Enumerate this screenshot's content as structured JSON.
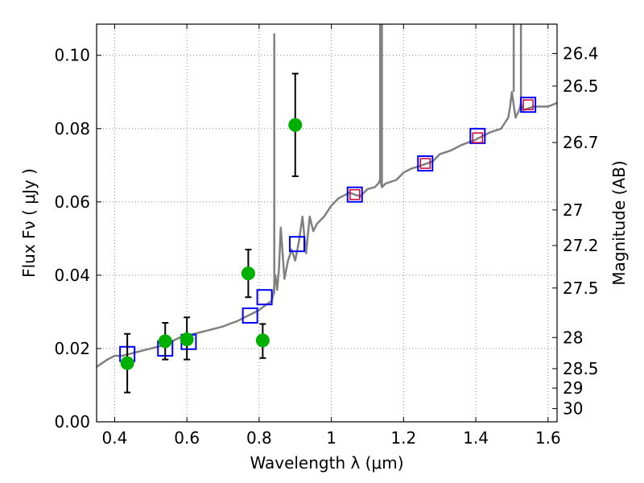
{
  "chart_data": {
    "type": "line",
    "title": "",
    "xlabel": "Wavelength  λ (μm)",
    "ylabel": "Flux  Fν  ( μJy )",
    "y2label": "Magnitude (AB)",
    "xlim": [
      0.35,
      1.625
    ],
    "ylim": [
      0.0,
      0.1085
    ],
    "grid": true,
    "x_ticks": [
      0.4,
      0.6,
      0.8,
      1.0,
      1.2,
      1.4,
      1.6
    ],
    "x_tick_labels": [
      "0.4",
      "0.6",
      "0.8",
      "1",
      "1.2",
      "1.4",
      "1.6"
    ],
    "y_ticks": [
      0.0,
      0.02,
      0.04,
      0.06,
      0.08,
      0.1
    ],
    "y_tick_labels": [
      "0.00",
      "0.02",
      "0.04",
      "0.06",
      "0.08",
      "0.10"
    ],
    "mag_ticks": [
      {
        "label": "26.4",
        "flux": 0.1005
      },
      {
        "label": "26.5",
        "flux": 0.0916
      },
      {
        "label": "26.7",
        "flux": 0.0762
      },
      {
        "label": "27",
        "flux": 0.0578
      },
      {
        "label": "27.2",
        "flux": 0.0481
      },
      {
        "label": "27.5",
        "flux": 0.0365
      },
      {
        "label": "28",
        "flux": 0.023
      },
      {
        "label": "28.5",
        "flux": 0.0145
      },
      {
        "label": "29",
        "flux": 0.0092
      },
      {
        "label": "30",
        "flux": 0.0036
      }
    ],
    "colors": {
      "model": "#808080",
      "photometry": "#00b000",
      "errorbar": "#000000",
      "model_bands": "#0000ff",
      "observed_bands": "#cc0033",
      "grid": "#888888"
    },
    "series": [
      {
        "kind": "model_spectrum",
        "x": [
          0.35,
          0.38,
          0.4,
          0.42,
          0.44,
          0.46,
          0.48,
          0.5,
          0.52,
          0.54,
          0.56,
          0.58,
          0.6,
          0.62,
          0.64,
          0.66,
          0.68,
          0.7,
          0.72,
          0.74,
          0.76,
          0.78,
          0.8,
          0.82,
          0.835,
          0.84,
          0.845,
          0.85,
          0.855,
          0.86,
          0.87,
          0.88,
          0.89,
          0.9,
          0.91,
          0.92,
          0.93,
          0.94,
          0.95,
          0.96,
          0.98,
          1.0,
          1.02,
          1.05,
          1.08,
          1.1,
          1.12,
          1.13,
          1.135,
          1.14,
          1.15,
          1.18,
          1.2,
          1.22,
          1.25,
          1.28,
          1.3,
          1.33,
          1.36,
          1.4,
          1.44,
          1.47,
          1.49,
          1.495,
          1.5,
          1.51,
          1.52,
          1.525,
          1.53,
          1.56,
          1.6,
          1.625
        ],
        "y": [
          0.015,
          0.017,
          0.018,
          0.018,
          0.0185,
          0.019,
          0.0195,
          0.02,
          0.0205,
          0.021,
          0.022,
          0.023,
          0.0235,
          0.024,
          0.0245,
          0.025,
          0.0255,
          0.026,
          0.0268,
          0.0275,
          0.0285,
          0.0295,
          0.0305,
          0.032,
          0.033,
          0.035,
          0.04,
          0.036,
          0.042,
          0.053,
          0.039,
          0.044,
          0.047,
          0.044,
          0.049,
          0.056,
          0.046,
          0.056,
          0.052,
          0.054,
          0.056,
          0.059,
          0.061,
          0.0625,
          0.0615,
          0.0635,
          0.064,
          0.065,
          0.066,
          0.064,
          0.065,
          0.066,
          0.068,
          0.069,
          0.07,
          0.071,
          0.073,
          0.074,
          0.0755,
          0.077,
          0.079,
          0.08,
          0.083,
          0.086,
          0.09,
          0.083,
          0.085,
          0.087,
          0.085,
          0.086,
          0.086,
          0.087
        ],
        "spikes": [
          {
            "x": 0.842,
            "peak": 0.106
          },
          {
            "x": 1.135,
            "peak": 0.1085
          },
          {
            "x": 1.14,
            "peak": 0.1085
          },
          {
            "x": 1.505,
            "peak": 0.1085
          },
          {
            "x": 1.525,
            "peak": 0.1085
          }
        ]
      },
      {
        "kind": "photometry",
        "x": [
          0.435,
          0.54,
          0.6,
          0.77,
          0.81,
          0.9
        ],
        "y": [
          0.016,
          0.022,
          0.0225,
          0.0405,
          0.0222,
          0.081
        ],
        "yerr_low": [
          0.008,
          0.005,
          0.0055,
          0.0065,
          0.0048,
          0.014
        ],
        "yerr_high": [
          0.008,
          0.005,
          0.006,
          0.0065,
          0.0045,
          0.014
        ]
      },
      {
        "kind": "model_bandpass",
        "x": [
          0.435,
          0.54,
          0.605,
          0.775,
          0.815,
          0.905,
          1.065,
          1.26,
          1.405,
          1.545
        ],
        "y": [
          0.0185,
          0.02,
          0.0218,
          0.029,
          0.034,
          0.0485,
          0.062,
          0.0705,
          0.078,
          0.0865
        ]
      },
      {
        "kind": "observed_bandpass",
        "x": [
          1.065,
          1.26,
          1.405,
          1.545
        ],
        "y": [
          0.062,
          0.0705,
          0.0775,
          0.0865
        ]
      }
    ]
  }
}
